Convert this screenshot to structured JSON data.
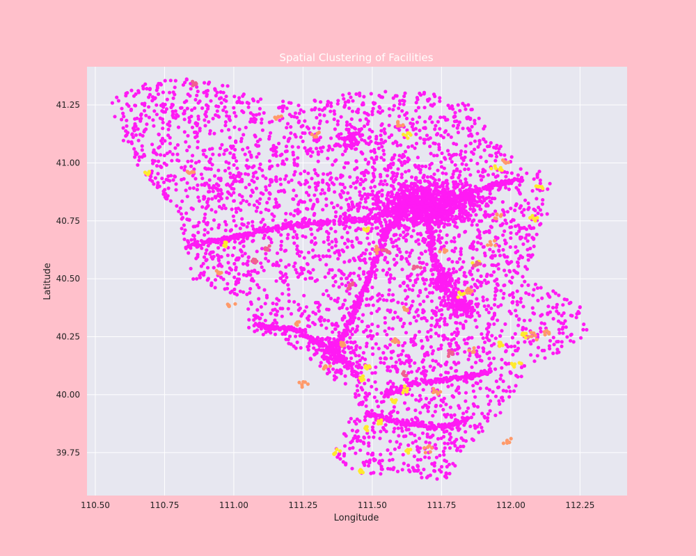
{
  "chart_data": {
    "type": "scatter",
    "title": "Spatial Clustering of Facilities",
    "xlabel": "Longitude",
    "ylabel": "Latitude",
    "xlim": [
      110.47,
      112.42
    ],
    "ylim": [
      39.565,
      41.415
    ],
    "xticks": [
      "110.50",
      "110.75",
      "111.00",
      "111.25",
      "111.50",
      "111.75",
      "112.00",
      "112.25"
    ],
    "yticks": [
      "39.75",
      "40.00",
      "40.25",
      "40.50",
      "40.75",
      "41.00",
      "41.25"
    ],
    "grid": true,
    "legend": "none",
    "colors": {
      "figure_bg": "#ffc0cb",
      "axes_bg": "#e7e7f0",
      "grid": "#ffffff",
      "title": "#ffffff",
      "text": "#222222",
      "cluster_main": "#ff1af4",
      "cluster_road": "#f06090",
      "cluster_minor": "#ff9a6a",
      "cluster_small": "#ffea2e"
    },
    "outline": [
      [
        110.55,
        41.29
      ],
      [
        110.62,
        41.32
      ],
      [
        110.7,
        41.36
      ],
      [
        110.8,
        41.37
      ],
      [
        110.9,
        41.35
      ],
      [
        111.0,
        41.33
      ],
      [
        111.1,
        41.28
      ],
      [
        111.25,
        41.26
      ],
      [
        111.4,
        41.3
      ],
      [
        111.55,
        41.31
      ],
      [
        111.7,
        41.31
      ],
      [
        111.85,
        41.25
      ],
      [
        111.95,
        41.09
      ],
      [
        112.05,
        40.97
      ],
      [
        112.13,
        40.96
      ],
      [
        112.16,
        40.85
      ],
      [
        112.1,
        40.7
      ],
      [
        112.06,
        40.52
      ],
      [
        112.15,
        40.45
      ],
      [
        112.25,
        40.38
      ],
      [
        112.3,
        40.25
      ],
      [
        112.2,
        40.2
      ],
      [
        112.05,
        40.1
      ],
      [
        111.97,
        39.92
      ],
      [
        111.85,
        39.78
      ],
      [
        111.75,
        39.61
      ],
      [
        111.6,
        39.66
      ],
      [
        111.45,
        39.65
      ],
      [
        111.36,
        39.74
      ],
      [
        111.45,
        39.97
      ],
      [
        111.3,
        40.13
      ],
      [
        111.2,
        40.22
      ],
      [
        111.05,
        40.28
      ],
      [
        111.05,
        40.4
      ],
      [
        110.85,
        40.5
      ],
      [
        110.8,
        40.78
      ],
      [
        110.7,
        40.92
      ],
      [
        110.6,
        41.07
      ],
      [
        110.55,
        41.29
      ]
    ],
    "series": [
      {
        "color": "#ff1af4",
        "density_centers": [
          {
            "x": 111.7,
            "y": 40.82,
            "sx": 0.09,
            "sy": 0.05,
            "w": 0.28
          },
          {
            "x": 111.82,
            "y": 40.38,
            "sx": 0.03,
            "sy": 0.02,
            "w": 0.03
          },
          {
            "x": 111.76,
            "y": 40.48,
            "sx": 0.03,
            "sy": 0.03,
            "w": 0.03
          },
          {
            "x": 111.43,
            "y": 41.11,
            "sx": 0.03,
            "sy": 0.02,
            "w": 0.02
          },
          {
            "x": 111.37,
            "y": 40.2,
            "sx": 0.05,
            "sy": 0.05,
            "w": 0.03
          }
        ],
        "lines": [
          [
            [
              110.83,
              40.64
            ],
            [
              111.2,
              40.73
            ],
            [
              111.5,
              40.76
            ],
            [
              111.62,
              40.82
            ]
          ],
          [
            [
              111.08,
              40.3
            ],
            [
              111.22,
              40.28
            ],
            [
              111.37,
              40.18
            ],
            [
              111.45,
              40.08
            ]
          ],
          [
            [
              111.37,
              40.18
            ],
            [
              111.47,
              40.45
            ],
            [
              111.55,
              40.7
            ],
            [
              111.62,
              40.8
            ]
          ],
          [
            [
              111.7,
              40.78
            ],
            [
              111.72,
              40.6
            ],
            [
              111.77,
              40.45
            ],
            [
              111.83,
              40.38
            ]
          ],
          [
            [
              111.55,
              40.0
            ],
            [
              111.65,
              40.05
            ],
            [
              111.8,
              40.07
            ],
            [
              111.93,
              40.1
            ]
          ],
          [
            [
              111.48,
              39.92
            ],
            [
              111.6,
              39.88
            ],
            [
              111.75,
              39.86
            ],
            [
              111.85,
              39.9
            ]
          ],
          [
            [
              111.72,
              40.81
            ],
            [
              111.82,
              40.85
            ],
            [
              111.92,
              40.9
            ],
            [
              112.05,
              40.93
            ]
          ]
        ]
      }
    ],
    "accent_points": [
      {
        "x": 111.42,
        "y": 40.47,
        "c": "road"
      },
      {
        "x": 111.55,
        "y": 40.62,
        "c": "road"
      },
      {
        "x": 110.86,
        "y": 41.34,
        "c": "road"
      },
      {
        "x": 111.6,
        "y": 41.17,
        "c": "minor"
      },
      {
        "x": 110.69,
        "y": 40.96,
        "c": "small"
      },
      {
        "x": 110.84,
        "y": 40.96,
        "c": "minor"
      },
      {
        "x": 111.95,
        "y": 40.98,
        "c": "small"
      },
      {
        "x": 112.1,
        "y": 40.9,
        "c": "small"
      },
      {
        "x": 111.98,
        "y": 41.0,
        "c": "minor"
      },
      {
        "x": 111.47,
        "y": 40.71,
        "c": "small"
      },
      {
        "x": 111.63,
        "y": 41.12,
        "c": "small"
      },
      {
        "x": 110.97,
        "y": 40.65,
        "c": "small"
      },
      {
        "x": 110.95,
        "y": 40.53,
        "c": "minor"
      },
      {
        "x": 111.22,
        "y": 40.31,
        "c": "minor"
      },
      {
        "x": 111.52,
        "y": 40.62,
        "c": "minor"
      },
      {
        "x": 111.85,
        "y": 40.45,
        "c": "minor"
      },
      {
        "x": 111.82,
        "y": 40.43,
        "c": "small"
      },
      {
        "x": 111.88,
        "y": 40.57,
        "c": "small"
      },
      {
        "x": 111.93,
        "y": 40.65,
        "c": "minor"
      },
      {
        "x": 112.05,
        "y": 40.26,
        "c": "small"
      },
      {
        "x": 112.08,
        "y": 40.25,
        "c": "minor"
      },
      {
        "x": 112.13,
        "y": 40.27,
        "c": "minor"
      },
      {
        "x": 111.97,
        "y": 40.22,
        "c": "small"
      },
      {
        "x": 112.02,
        "y": 40.13,
        "c": "small"
      },
      {
        "x": 111.4,
        "y": 40.22,
        "c": "minor"
      },
      {
        "x": 111.48,
        "y": 40.12,
        "c": "small"
      },
      {
        "x": 111.47,
        "y": 40.07,
        "c": "small"
      },
      {
        "x": 111.62,
        "y": 40.02,
        "c": "small"
      },
      {
        "x": 111.58,
        "y": 39.97,
        "c": "small"
      },
      {
        "x": 111.53,
        "y": 39.88,
        "c": "small"
      },
      {
        "x": 111.48,
        "y": 39.86,
        "c": "small"
      },
      {
        "x": 111.37,
        "y": 39.75,
        "c": "small"
      },
      {
        "x": 111.46,
        "y": 39.67,
        "c": "small"
      },
      {
        "x": 111.7,
        "y": 39.77,
        "c": "minor"
      },
      {
        "x": 111.63,
        "y": 39.76,
        "c": "small"
      },
      {
        "x": 111.88,
        "y": 40.56,
        "c": "road"
      },
      {
        "x": 111.76,
        "y": 40.62,
        "c": "minor"
      },
      {
        "x": 111.58,
        "y": 40.23,
        "c": "minor"
      },
      {
        "x": 111.62,
        "y": 40.37,
        "c": "minor"
      },
      {
        "x": 111.33,
        "y": 40.12,
        "c": "minor"
      },
      {
        "x": 112.0,
        "y": 39.8,
        "c": "minor"
      },
      {
        "x": 111.16,
        "y": 41.2,
        "c": "minor"
      },
      {
        "x": 111.3,
        "y": 41.12,
        "c": "minor"
      },
      {
        "x": 111.25,
        "y": 40.05,
        "c": "minor"
      },
      {
        "x": 111.95,
        "y": 40.77,
        "c": "minor"
      },
      {
        "x": 112.08,
        "y": 40.76,
        "c": "small"
      },
      {
        "x": 111.12,
        "y": 40.63,
        "c": "road"
      },
      {
        "x": 110.98,
        "y": 40.38,
        "c": "minor"
      },
      {
        "x": 111.08,
        "y": 40.58,
        "c": "road"
      },
      {
        "x": 111.66,
        "y": 40.55,
        "c": "road"
      },
      {
        "x": 111.78,
        "y": 40.18,
        "c": "road"
      },
      {
        "x": 111.86,
        "y": 40.19,
        "c": "minor"
      },
      {
        "x": 111.62,
        "y": 40.09,
        "c": "road"
      },
      {
        "x": 111.73,
        "y": 40.01,
        "c": "minor"
      }
    ]
  }
}
